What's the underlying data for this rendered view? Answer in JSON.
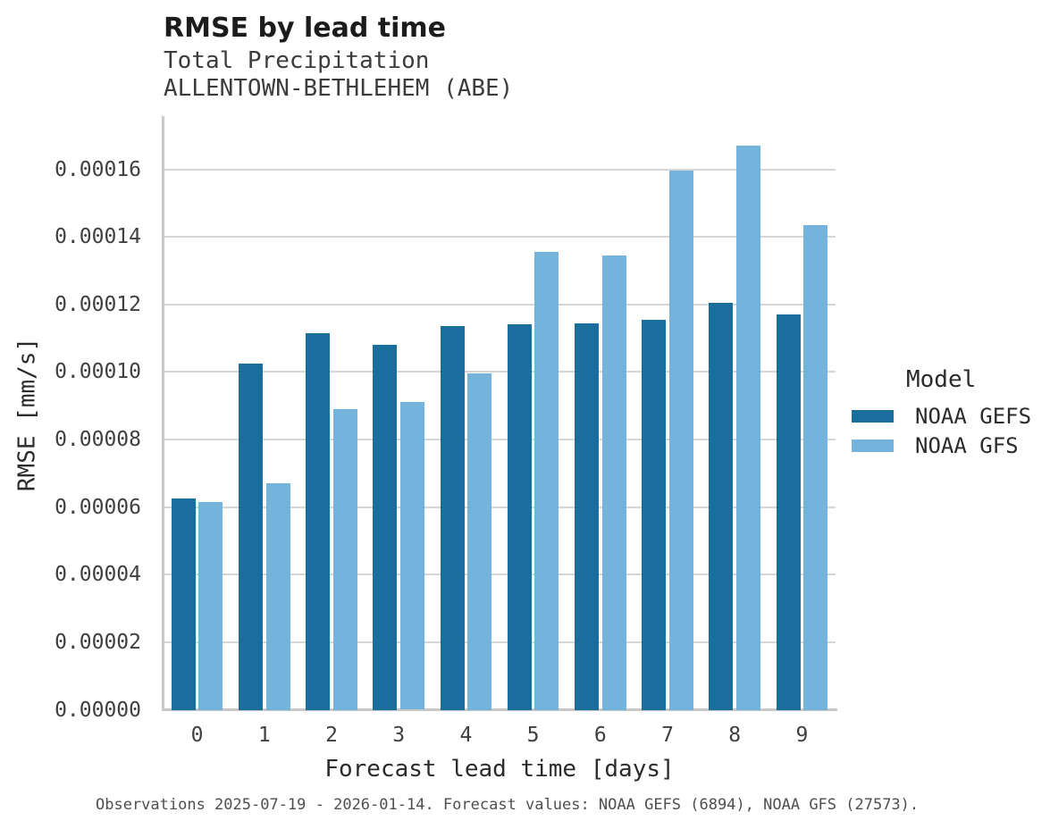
{
  "header": {
    "title": "RMSE by lead time",
    "subtitle_line1": "Total Precipitation",
    "subtitle_line2": "ALLENTOWN-BETHLEHEM (ABE)"
  },
  "chart_data": {
    "type": "bar",
    "categories": [
      "0",
      "1",
      "2",
      "3",
      "4",
      "5",
      "6",
      "7",
      "8",
      "9"
    ],
    "series": [
      {
        "name": "NOAA GEFS",
        "color": "#1a6e9e",
        "values": [
          6.25e-05,
          0.0001025,
          0.0001115,
          0.000108,
          0.0001135,
          0.000114,
          0.0001145,
          0.0001155,
          0.0001205,
          0.000117
        ]
      },
      {
        "name": "NOAA GFS",
        "color": "#74b4dc",
        "values": [
          6.15e-05,
          6.7e-05,
          8.9e-05,
          9.12e-05,
          9.95e-05,
          0.0001355,
          0.0001345,
          0.0001595,
          0.000167,
          0.0001435
        ]
      }
    ],
    "title": "RMSE by lead time",
    "xlabel": "Forecast lead time [days]",
    "ylabel": "RMSE [mm/s]",
    "ylim": [
      0,
      0.000175
    ],
    "yticks": [
      0,
      2e-05,
      4e-05,
      6e-05,
      8e-05,
      0.0001,
      0.00012,
      0.00014,
      0.00016
    ],
    "ytick_labels": [
      "0.00000",
      "0.00002",
      "0.00004",
      "0.00006",
      "0.00008",
      "0.00010",
      "0.00012",
      "0.00014",
      "0.00016"
    ],
    "grid": true,
    "legend": {
      "title": "Model",
      "position": "right"
    }
  },
  "caption": "Observations 2025-07-19 - 2026-01-14. Forecast values: NOAA GEFS (6894), NOAA GFS (27573)."
}
